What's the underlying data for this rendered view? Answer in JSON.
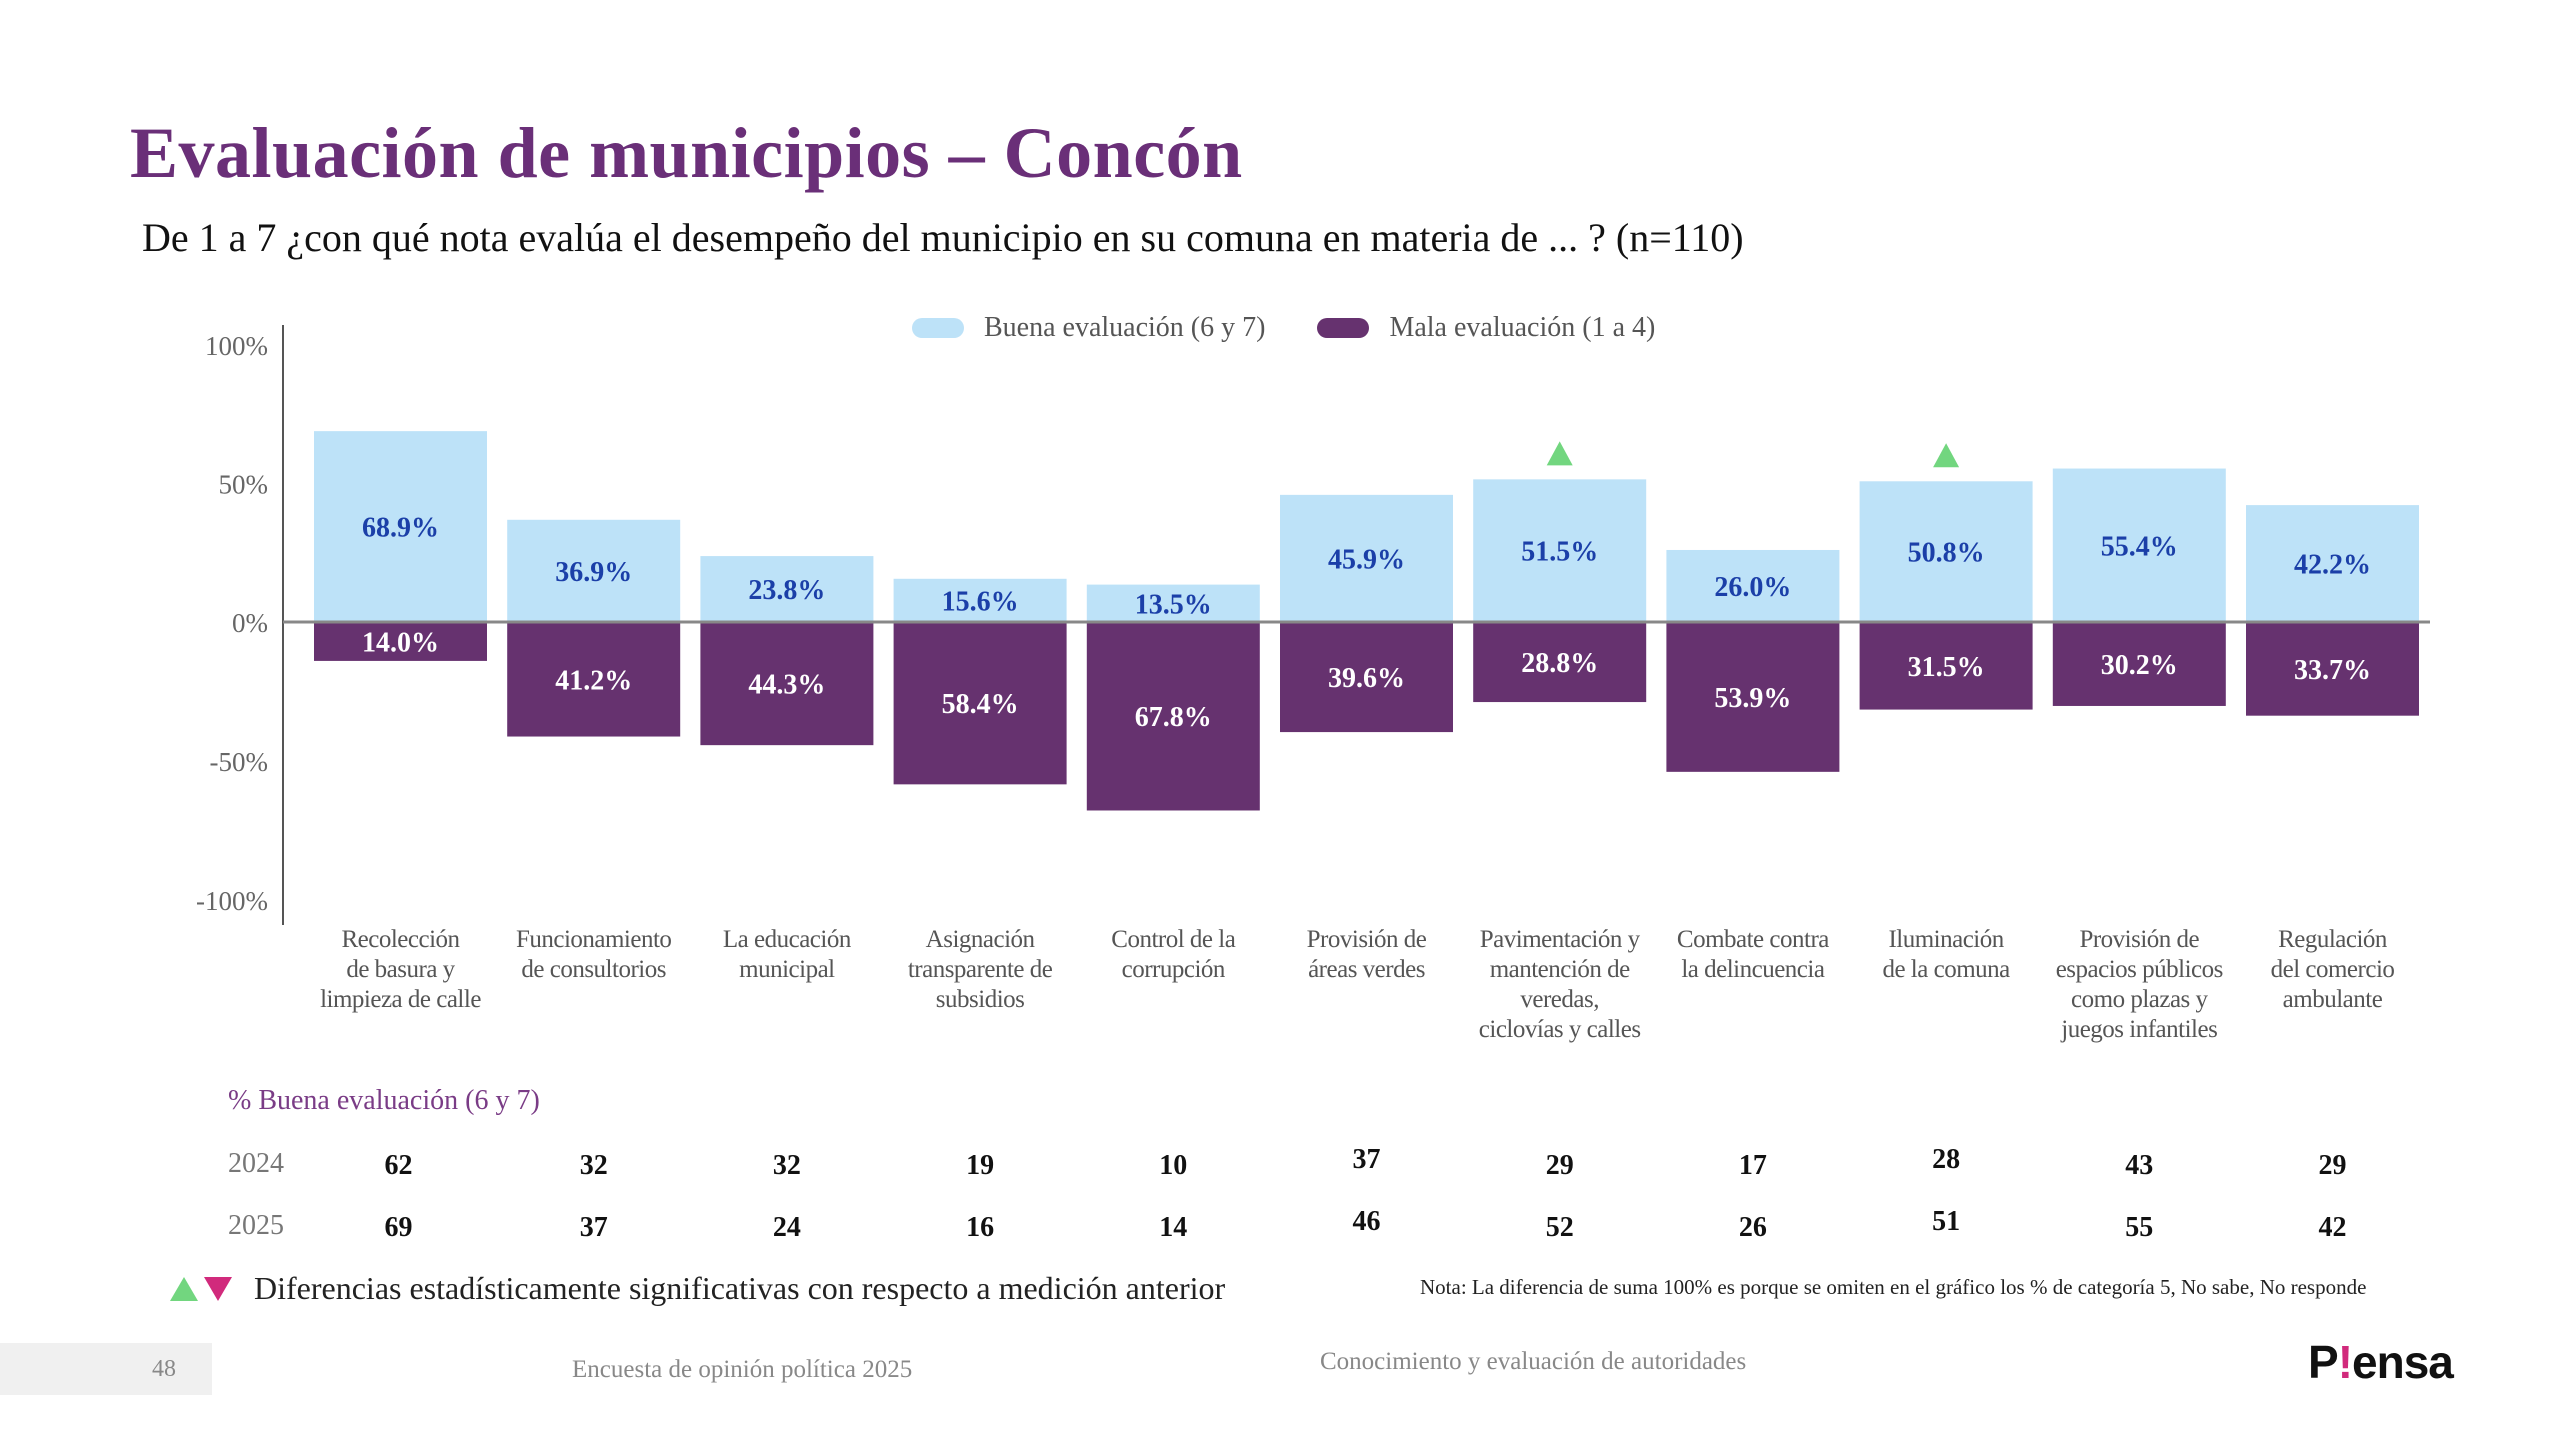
{
  "header": {
    "title": "Evaluación de municipios – Concón",
    "subtitle": "De 1 a 7 ¿con qué nota evalúa el desempeño del municipio en su comuna en materia de ... ? (n=110)"
  },
  "colors": {
    "good": "#bde2f8",
    "bad": "#66326f",
    "good_label": "#1b3fa8",
    "bad_label": "#ffffff",
    "sig_up": "#72d67f",
    "sig_down": "#d12a7c",
    "title": "#6a2f78"
  },
  "chart_data": {
    "type": "bar",
    "title": "",
    "xlabel": "",
    "ylabel": "",
    "ylim": [
      -100,
      100
    ],
    "yticks": [
      100,
      50,
      0,
      -50,
      -100
    ],
    "ytick_labels": [
      "100%",
      "50%",
      "0%",
      "-50%",
      "-100%"
    ],
    "grid": false,
    "legend_position": "top-center",
    "categories": [
      [
        "Recolección",
        "de basura y",
        "limpieza de calle"
      ],
      [
        "Funcionamiento",
        "de consultorios"
      ],
      [
        "La educación",
        "municipal"
      ],
      [
        "Asignación",
        "transparente de",
        "subsidios"
      ],
      [
        "Control de la",
        "corrupción"
      ],
      [
        "Provisión de",
        "áreas verdes"
      ],
      [
        "Pavimentación y",
        "mantención de",
        "veredas,",
        "ciclovías y calles"
      ],
      [
        "Combate contra",
        "la delincuencia"
      ],
      [
        "Iluminación",
        "de la comuna"
      ],
      [
        "Provisión de",
        "espacios públicos",
        "como plazas y",
        "juegos infantiles"
      ],
      [
        "Regulación",
        "del comercio",
        "ambulante"
      ]
    ],
    "series": [
      {
        "name": "Buena evaluación (6 y 7)",
        "values": [
          68.9,
          36.9,
          23.8,
          15.6,
          13.5,
          45.9,
          51.5,
          26.0,
          50.8,
          55.4,
          42.2
        ],
        "labels": [
          "68.9%",
          "36.9%",
          "23.8%",
          "15.6%",
          "13.5%",
          "45.9%",
          "51.5%",
          "26.0%",
          "50.8%",
          "55.4%",
          "42.2%"
        ]
      },
      {
        "name": "Mala evaluación (1 a 4)",
        "values": [
          -14.0,
          -41.2,
          -44.3,
          -58.4,
          -67.8,
          -39.6,
          -28.8,
          -53.9,
          -31.5,
          -30.2,
          -33.7
        ],
        "labels": [
          "14.0%",
          "41.2%",
          "44.3%",
          "58.4%",
          "67.8%",
          "39.6%",
          "28.8%",
          "53.9%",
          "31.5%",
          "30.2%",
          "33.7%"
        ]
      }
    ],
    "significance": [
      "",
      "",
      "",
      "",
      "",
      "",
      "up",
      "",
      "up",
      "",
      ""
    ]
  },
  "legend": {
    "good": "Buena evaluación (6 y 7)",
    "bad": "Mala evaluación (1 a 4)"
  },
  "table": {
    "header": "% Buena evaluación (6 y 7)",
    "rows": [
      {
        "year": "2024",
        "values": [
          "62",
          "32",
          "32",
          "19",
          "10",
          "37",
          "29",
          "17",
          "28",
          "43",
          "29"
        ]
      },
      {
        "year": "2025",
        "values": [
          "69",
          "37",
          "24",
          "16",
          "14",
          "46",
          "52",
          "26",
          "51",
          "55",
          "42"
        ]
      }
    ]
  },
  "notes": {
    "significance": "Diferencias estadísticamente significativas con respecto a medición anterior",
    "nota": "Nota: La diferencia de suma 100% es porque se omiten en el gráfico los % de categoría 5, No sabe, No responde"
  },
  "footer": {
    "page": "48",
    "survey": "Encuesta de opinión política 2025",
    "section": "Conocimiento y evaluación de autoridades",
    "logo_p": "P",
    "logo_bang": "!",
    "logo_rest": "ensa"
  }
}
